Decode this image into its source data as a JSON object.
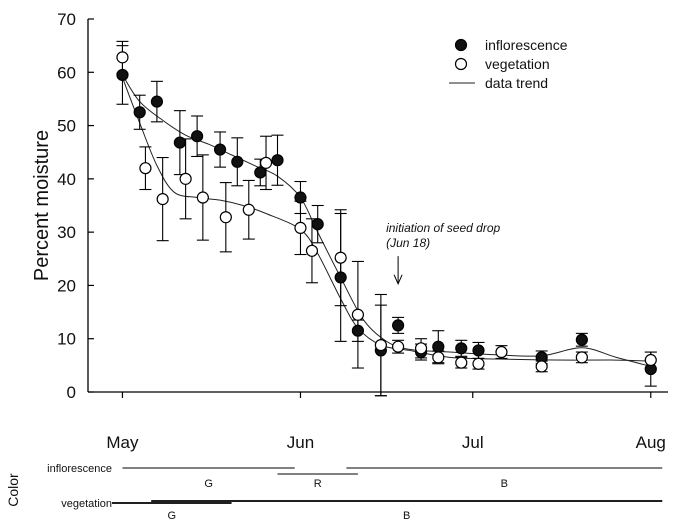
{
  "chart_data": {
    "type": "scatter",
    "ylabel": "Percent moisture",
    "ylim": [
      0,
      70
    ],
    "yticks": [
      0,
      10,
      20,
      30,
      40,
      50,
      60,
      70
    ],
    "xticks": [
      "May",
      "Jun",
      "Jul",
      "Aug"
    ],
    "xtick_dates": [
      "2000-05-01",
      "2000-06-01",
      "2000-07-01",
      "2000-08-01"
    ],
    "xlim": [
      "2000-04-25",
      "2000-08-04"
    ],
    "legend_position": "top-right",
    "legend": {
      "inflorescence": "inflorescence",
      "vegetation": "vegetation",
      "trend": "data trend"
    },
    "series": [
      {
        "name": "inflorescence",
        "marker": "filled-circle",
        "points": [
          {
            "x": "2000-05-01",
            "y": 59.5,
            "err": 5.5
          },
          {
            "x": "2000-05-04",
            "y": 52.5,
            "err": 3.2
          },
          {
            "x": "2000-05-07",
            "y": 54.5,
            "err": 3.8
          },
          {
            "x": "2000-05-11",
            "y": 46.8,
            "err": 6.0
          },
          {
            "x": "2000-05-14",
            "y": 48.0,
            "err": 3.8
          },
          {
            "x": "2000-05-18",
            "y": 45.5,
            "err": 3.3
          },
          {
            "x": "2000-05-21",
            "y": 43.2,
            "err": 4.5
          },
          {
            "x": "2000-05-25",
            "y": 41.2,
            "err": 2.5
          },
          {
            "x": "2000-05-28",
            "y": 43.5,
            "err": 4.7
          },
          {
            "x": "2000-06-01",
            "y": 36.5,
            "err": 3.0
          },
          {
            "x": "2000-06-04",
            "y": 31.5,
            "err": 3.5
          },
          {
            "x": "2000-06-08",
            "y": 21.5,
            "err": 12.0
          },
          {
            "x": "2000-06-11",
            "y": 11.5,
            "err": 2.0
          },
          {
            "x": "2000-06-15",
            "y": 7.8,
            "err": 8.5
          },
          {
            "x": "2000-06-18",
            "y": 12.5,
            "err": 1.5
          },
          {
            "x": "2000-06-22",
            "y": 7.5,
            "err": 1.5
          },
          {
            "x": "2000-06-25",
            "y": 8.5,
            "err": 3.0
          },
          {
            "x": "2000-06-29",
            "y": 8.2,
            "err": 1.5
          },
          {
            "x": "2000-07-02",
            "y": 7.8,
            "err": 1.5
          },
          {
            "x": "2000-07-13",
            "y": 6.5,
            "err": 1.2
          },
          {
            "x": "2000-07-20",
            "y": 9.8,
            "err": 1.2
          },
          {
            "x": "2000-08-01",
            "y": 4.3,
            "err": 3.2
          }
        ]
      },
      {
        "name": "vegetation",
        "marker": "open-circle",
        "points": [
          {
            "x": "2000-05-01",
            "y": 62.8,
            "err": 3.0
          },
          {
            "x": "2000-05-05",
            "y": 42.0,
            "err": 4.0
          },
          {
            "x": "2000-05-08",
            "y": 36.2,
            "err": 7.8
          },
          {
            "x": "2000-05-12",
            "y": 40.0,
            "err": 7.5
          },
          {
            "x": "2000-05-15",
            "y": 36.5,
            "err": 8.0
          },
          {
            "x": "2000-05-19",
            "y": 32.8,
            "err": 6.5
          },
          {
            "x": "2000-05-23",
            "y": 34.2,
            "err": 5.5
          },
          {
            "x": "2000-05-26",
            "y": 43.0,
            "err": 5.0
          },
          {
            "x": "2000-06-01",
            "y": 30.8,
            "err": 5.0
          },
          {
            "x": "2000-06-03",
            "y": 26.5,
            "err": 6.0
          },
          {
            "x": "2000-06-08",
            "y": 25.2,
            "err": 9.0
          },
          {
            "x": "2000-06-11",
            "y": 14.5,
            "err": 10.0
          },
          {
            "x": "2000-06-15",
            "y": 8.8,
            "err": 9.5
          },
          {
            "x": "2000-06-18",
            "y": 8.5,
            "err": 1.2
          },
          {
            "x": "2000-06-22",
            "y": 8.2,
            "err": 1.8
          },
          {
            "x": "2000-06-25",
            "y": 6.5,
            "err": 1.2
          },
          {
            "x": "2000-06-29",
            "y": 5.5,
            "err": 1.0
          },
          {
            "x": "2000-07-02",
            "y": 5.3,
            "err": 1.0
          },
          {
            "x": "2000-07-06",
            "y": 7.5,
            "err": 1.2
          },
          {
            "x": "2000-07-13",
            "y": 4.8,
            "err": 1.0
          },
          {
            "x": "2000-07-20",
            "y": 6.5,
            "err": 1.0
          },
          {
            "x": "2000-08-01",
            "y": 6.0,
            "err": 1.5
          }
        ]
      }
    ],
    "trends": [
      {
        "name": "inflorescence",
        "points": [
          {
            "x": "2000-05-01",
            "y": 59.5
          },
          {
            "x": "2000-05-04",
            "y": 54.5
          },
          {
            "x": "2000-05-08",
            "y": 51.0
          },
          {
            "x": "2000-05-12",
            "y": 48.2
          },
          {
            "x": "2000-05-16",
            "y": 46.5
          },
          {
            "x": "2000-05-20",
            "y": 44.5
          },
          {
            "x": "2000-05-24",
            "y": 42.5
          },
          {
            "x": "2000-05-28",
            "y": 40.5
          },
          {
            "x": "2000-06-01",
            "y": 36.5
          },
          {
            "x": "2000-06-04",
            "y": 30.0
          },
          {
            "x": "2000-06-08",
            "y": 21.5
          },
          {
            "x": "2000-06-12",
            "y": 13.5
          },
          {
            "x": "2000-06-16",
            "y": 9.5
          },
          {
            "x": "2000-06-20",
            "y": 8.0
          },
          {
            "x": "2000-06-27",
            "y": 7.5
          },
          {
            "x": "2000-07-05",
            "y": 7.0
          },
          {
            "x": "2000-07-13",
            "y": 6.8
          },
          {
            "x": "2000-07-20",
            "y": 8.3
          },
          {
            "x": "2000-07-26",
            "y": 6.5
          },
          {
            "x": "2000-08-01",
            "y": 4.8
          }
        ]
      },
      {
        "name": "vegetation",
        "points": [
          {
            "x": "2000-05-01",
            "y": 59.0
          },
          {
            "x": "2000-05-04",
            "y": 50.5
          },
          {
            "x": "2000-05-07",
            "y": 42.5
          },
          {
            "x": "2000-05-10",
            "y": 37.5
          },
          {
            "x": "2000-05-14",
            "y": 36.5
          },
          {
            "x": "2000-05-18",
            "y": 36.0
          },
          {
            "x": "2000-05-22",
            "y": 35.0
          },
          {
            "x": "2000-05-26",
            "y": 33.5
          },
          {
            "x": "2000-06-01",
            "y": 30.5
          },
          {
            "x": "2000-06-04",
            "y": 26.0
          },
          {
            "x": "2000-06-08",
            "y": 17.5
          },
          {
            "x": "2000-06-11",
            "y": 12.0
          },
          {
            "x": "2000-06-15",
            "y": 8.8
          },
          {
            "x": "2000-06-20",
            "y": 7.8
          },
          {
            "x": "2000-06-27",
            "y": 6.5
          },
          {
            "x": "2000-07-05",
            "y": 6.2
          },
          {
            "x": "2000-07-15",
            "y": 6.0
          },
          {
            "x": "2000-07-25",
            "y": 6.0
          },
          {
            "x": "2000-08-01",
            "y": 5.8
          }
        ]
      }
    ],
    "annotation": {
      "lines": [
        "initiation of seed drop",
        "(Jun 18)"
      ],
      "x": "2000-06-18",
      "y_text": 30,
      "y_arrow_tip": 20.3
    },
    "color_bars": {
      "label": "Color",
      "rows": [
        {
          "label": "inflorescence",
          "segments": [
            {
              "code": "G",
              "start": "2000-05-01",
              "end": "2000-05-31"
            },
            {
              "code": "R",
              "start": "2000-05-28",
              "end": "2000-06-11"
            },
            {
              "code": "B",
              "start": "2000-06-09",
              "end": "2000-08-03"
            }
          ]
        },
        {
          "label": "vegetation",
          "segments": [
            {
              "code": "G",
              "start": "2000-04-25",
              "end": "2000-05-20"
            },
            {
              "code": "B",
              "start": "2000-05-06",
              "end": "2000-08-03"
            }
          ]
        }
      ]
    }
  }
}
